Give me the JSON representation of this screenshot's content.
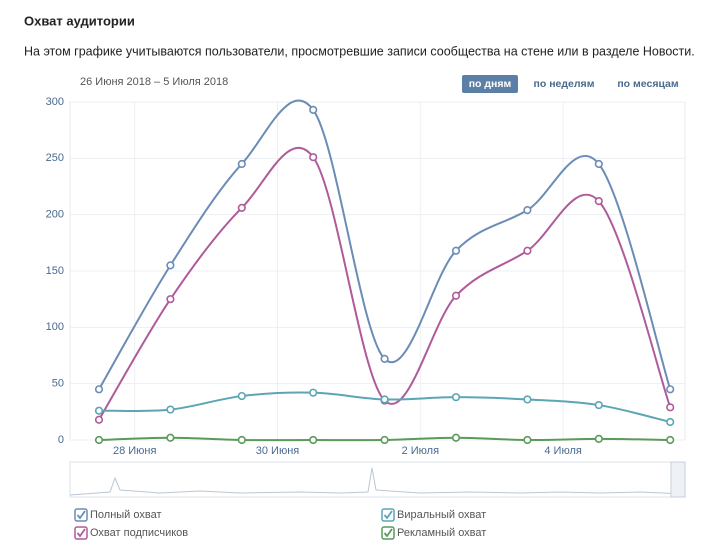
{
  "header": {
    "title": "Охват аудитории",
    "subtitle": "На этом графике учитываются пользователи, просмотревшие записи сообщества на стене или в разделе Новости.",
    "range": "26 Июня 2018 – 5 Июля 2018",
    "buttons": [
      "по дням",
      "по неделям",
      "по месяцам"
    ]
  },
  "chart_data": {
    "type": "line",
    "x": [
      "2018-06-27",
      "2018-06-28",
      "2018-06-29",
      "2018-06-30",
      "2018-07-01",
      "2018-07-02",
      "2018-07-03",
      "2018-07-04",
      "2018-07-05"
    ],
    "series": [
      {
        "name": "Полный охват",
        "color": "#6b8cb5",
        "values": [
          45,
          155,
          245,
          293,
          72,
          168,
          204,
          245,
          45
        ]
      },
      {
        "name": "Охват подписчиков",
        "color": "#b05a9a",
        "values": [
          18,
          125,
          206,
          251,
          35,
          128,
          168,
          212,
          29
        ]
      },
      {
        "name": "Виральный охват",
        "color": "#5ba5b5",
        "values": [
          26,
          27,
          39,
          42,
          36,
          38,
          36,
          31,
          16
        ]
      },
      {
        "name": "Рекламный охват",
        "color": "#5a9a5a",
        "values": [
          0,
          2,
          0,
          0,
          0,
          2,
          0,
          1,
          0
        ]
      }
    ],
    "ylim": [
      0,
      300
    ],
    "yticks": [
      0,
      50,
      100,
      150,
      200,
      250,
      300
    ],
    "xticks": [
      {
        "value": "2018-06-28",
        "label": "28 Июня"
      },
      {
        "value": "2018-06-30",
        "label": "30 Июня"
      },
      {
        "value": "2018-07-02",
        "label": "2 Июля"
      },
      {
        "value": "2018-07-04",
        "label": "4 Июля"
      }
    ],
    "grid": true
  }
}
